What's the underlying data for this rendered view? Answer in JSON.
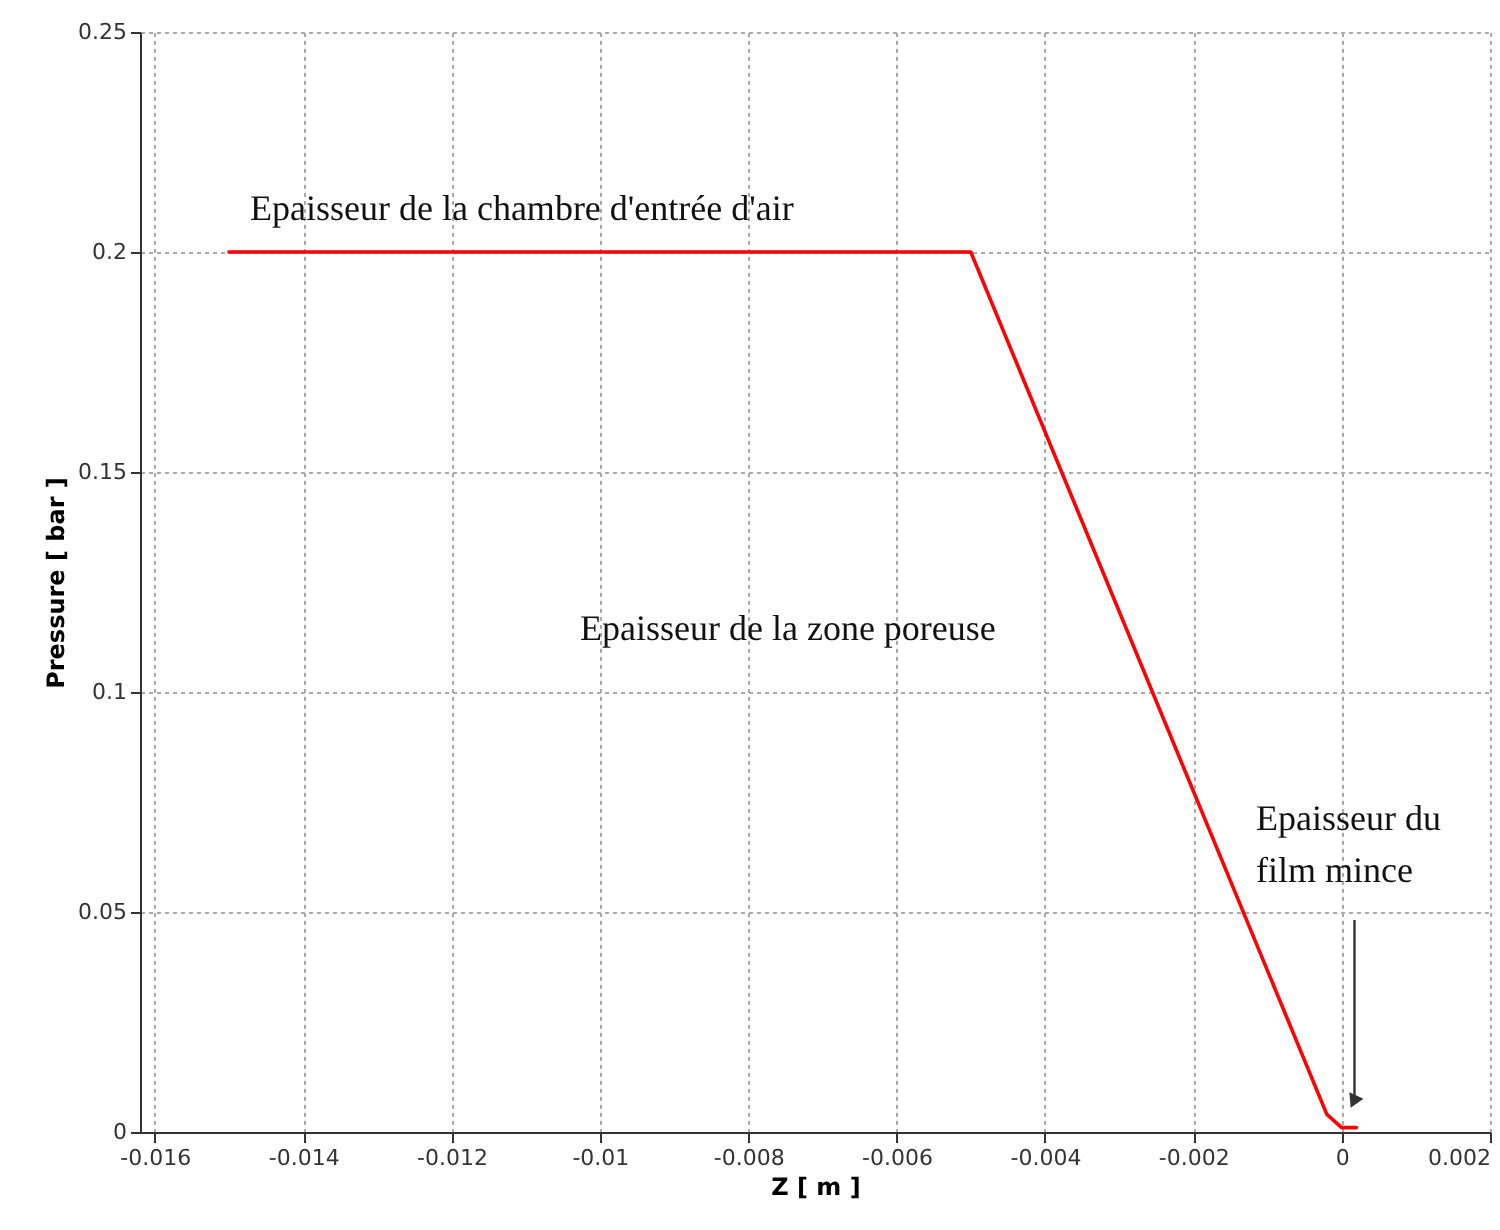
{
  "chart_data": {
    "type": "line",
    "xlabel": "Z [ m ]",
    "ylabel": "Pressure [ bar ]",
    "x": [
      -0.015,
      -0.005,
      -0.0002,
      0,
      0.0002
    ],
    "series": [
      {
        "color": "#ff0000",
        "values": [
          0.2,
          0.2,
          0.004,
          0.001,
          0.001
        ]
      }
    ],
    "xlim": [
      -0.0162,
      0.002
    ],
    "xticks": [
      -0.016,
      -0.014,
      -0.012,
      -0.01,
      -0.008,
      -0.006,
      -0.004,
      -0.002,
      0,
      0.002
    ],
    "ylim": [
      0,
      0.25
    ],
    "yticks": [
      0,
      0.05,
      0.1,
      0.15,
      0.2,
      0.25
    ],
    "grid": true,
    "line_style": "solid",
    "annotations": [
      "Epaisseur de la chambre d'entrée d'air",
      "Epaisseur de la zone poreuse",
      "Epaisseur du film mince"
    ]
  }
}
